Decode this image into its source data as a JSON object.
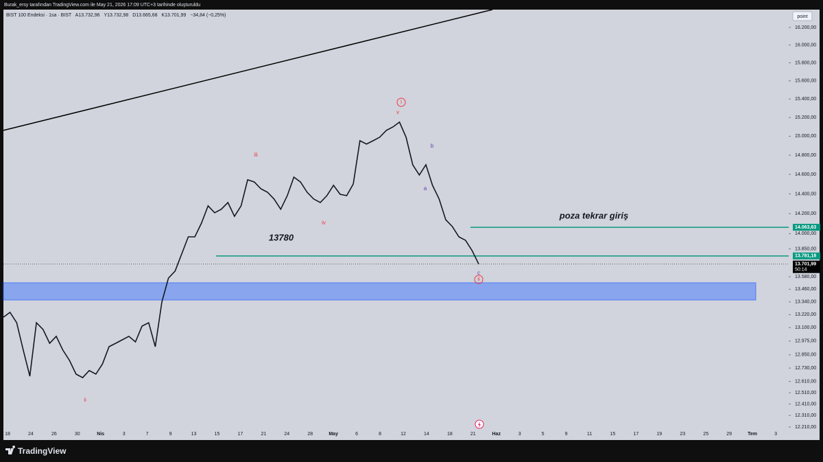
{
  "header": {
    "watermark": "Burak_ersy tarafından TradingView.com ile May 21, 2026 17:09 UTC+3 tarihinde oluşturuldu"
  },
  "chart_data": {
    "type": "line",
    "legend": [
      "BIST 100 Endeksi · 1sa · BIST",
      "A13.732,96",
      "Y13.732,98",
      "D13.665,68",
      "K13.701,99",
      "−34,84 (−0,25%)"
    ],
    "button": "point",
    "log_scale": true,
    "color": "#131722",
    "x_labels": [
      "18",
      "24",
      "26",
      "30",
      "Nis",
      "3",
      "7",
      "9",
      "13",
      "15",
      "17",
      "21",
      "24",
      "28",
      "May",
      "6",
      "8",
      "12",
      "14",
      "18",
      "21",
      "Haz",
      "3",
      "5",
      "9",
      "11",
      "15",
      "17",
      "19",
      "23",
      "25",
      "29",
      "Tem",
      "3"
    ],
    "values": [
      13197,
      13242,
      13145,
      12893,
      12657,
      13145,
      13082,
      12955,
      13019,
      12893,
      12799,
      12675,
      12644,
      12707,
      12675,
      12767,
      12924,
      12955,
      12987,
      13019,
      12968,
      13114,
      13145,
      12924,
      13339,
      13567,
      13634,
      13800,
      13969,
      13969,
      14106,
      14278,
      14209,
      14244,
      14312,
      14173,
      14278,
      14544,
      14522,
      14452,
      14417,
      14348,
      14244,
      14382,
      14572,
      14522,
      14417,
      14348,
      14312,
      14382,
      14488,
      14396,
      14382,
      14501,
      14952,
      14917,
      14952,
      14989,
      15062,
      15098,
      15150,
      14989,
      14700,
      14594,
      14700,
      14488,
      14348,
      14139,
      14071,
      13969,
      13934,
      13833,
      13701.99
    ],
    "ylim": [
      12192,
      16406
    ],
    "yticks": [
      {
        "value": 12210,
        "label": "12.210,00"
      },
      {
        "value": 12310,
        "label": "12.310,00"
      },
      {
        "value": 12410,
        "label": "12.410,00"
      },
      {
        "value": 12510,
        "label": "12.510,00"
      },
      {
        "value": 12610,
        "label": "12.610,00"
      },
      {
        "value": 12730,
        "label": "12.730,00"
      },
      {
        "value": 12850,
        "label": "12.850,00"
      },
      {
        "value": 12975,
        "label": "12.975,00"
      },
      {
        "value": 13100,
        "label": "13.100,00"
      },
      {
        "value": 13220,
        "label": "13.220,00"
      },
      {
        "value": 13340,
        "label": "13.340,00"
      },
      {
        "value": 13460,
        "label": "13.460,00"
      },
      {
        "value": 13580,
        "label": "13.580,00"
      },
      {
        "value": 13850,
        "label": "13.850,00"
      },
      {
        "value": 14000,
        "label": "14.000,00"
      },
      {
        "value": 14200,
        "label": "14.200,00"
      },
      {
        "value": 14400,
        "label": "14.400,00"
      },
      {
        "value": 14600,
        "label": "14.600,00"
      },
      {
        "value": 14800,
        "label": "14.800,00"
      },
      {
        "value": 15000,
        "label": "15.000,00"
      },
      {
        "value": 15200,
        "label": "15.200,00"
      },
      {
        "value": 15400,
        "label": "15.400,00"
      },
      {
        "value": 15600,
        "label": "15.600,00"
      },
      {
        "value": 15800,
        "label": "15.800,00"
      },
      {
        "value": 16000,
        "label": "16.000,00"
      },
      {
        "value": 16200,
        "label": "16.200,00"
      }
    ],
    "levels": [
      {
        "value": 14063.63,
        "label": "14.063,63",
        "color": "#089981"
      },
      {
        "value": 13781.18,
        "label": "13.781,18",
        "color": "#089981"
      }
    ],
    "last_price": {
      "value": 13701.99,
      "label": "13.701,99",
      "countdown": "50:14"
    },
    "zone": {
      "top": 13522,
      "bottom": 13358,
      "color": "#7b9cf0"
    },
    "trendline": {
      "values": [
        15062,
        16406
      ]
    },
    "annotations": [
      {
        "text": "iii",
        "color": "#f23645"
      },
      {
        "text": "iv",
        "color": "#f23645"
      },
      {
        "text": "v",
        "color": "#f23645"
      },
      {
        "text": "i",
        "color": "#f23645",
        "circled": true
      },
      {
        "text": "ii",
        "color": "#f23645"
      },
      {
        "text": "b",
        "color": "#673ab7"
      },
      {
        "text": "a",
        "color": "#673ab7"
      },
      {
        "text": "c",
        "color": "#673ab7"
      },
      {
        "text": "ii",
        "color": "#f23645",
        "circled": true
      },
      {
        "text": "13780",
        "color": "#131722",
        "big": true
      },
      {
        "text": "poza tekrar giriş",
        "color": "#131722",
        "big": true
      }
    ]
  },
  "footer": {
    "brand": "TradingView"
  }
}
